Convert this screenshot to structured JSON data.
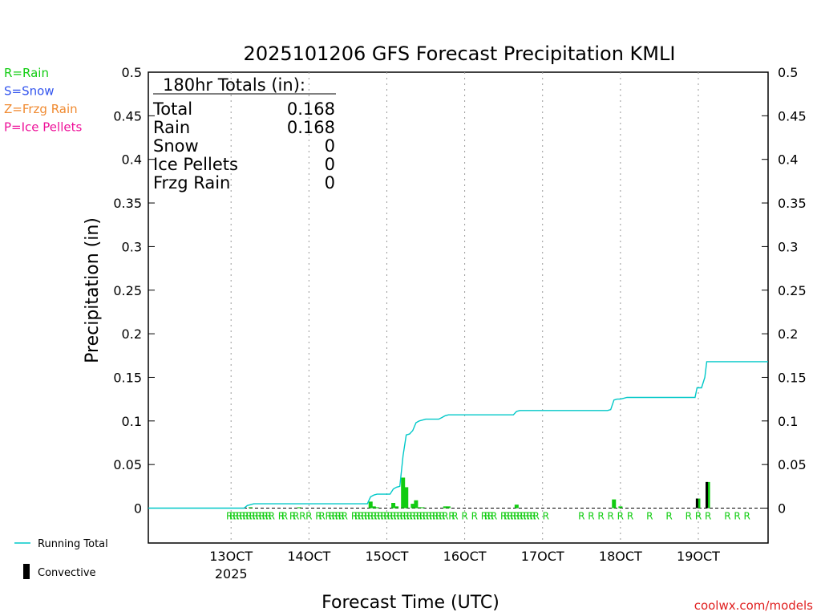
{
  "chart_data": {
    "type": "bar",
    "title": "2025101206 GFS Forecast Precipitation KMLI",
    "xlabel": "Forecast Time (UTC)",
    "ylabel": "Precipitation (in)",
    "ylim": [
      -0.04,
      0.5
    ],
    "xlim_hours": [
      -7.5,
      183.5
    ],
    "y_ticks": [
      0,
      0.05,
      0.1,
      0.15,
      0.2,
      0.25,
      0.3,
      0.35,
      0.4,
      0.45,
      0.5
    ],
    "y_tick_labels": [
      "0",
      "0.05",
      "0.1",
      "0.15",
      "0.2",
      "0.25",
      "0.3",
      "0.35",
      "0.4",
      "0.45",
      "0.5"
    ],
    "x_ticks": [
      {
        "hour": 18,
        "label": "13OCT",
        "sublabel": "2025"
      },
      {
        "hour": 42,
        "label": "14OCT"
      },
      {
        "hour": 66,
        "label": "15OCT"
      },
      {
        "hour": 90,
        "label": "16OCT"
      },
      {
        "hour": 114,
        "label": "17OCT"
      },
      {
        "hour": 138,
        "label": "18OCT"
      },
      {
        "hour": 162,
        "label": "19OCT"
      }
    ],
    "precip_type_legend": [
      {
        "label": "R=Rain",
        "color": "#11cc11"
      },
      {
        "label": "S=Snow",
        "color": "#3355ee"
      },
      {
        "label": "Z=Frzg Rain",
        "color": "#f08a30"
      },
      {
        "label": "P=Ice Pellets",
        "color": "#ee1199"
      }
    ],
    "series_legend": {
      "running_total": "Running Total",
      "convective": "Convective"
    },
    "totals_box": {
      "heading": "180hr Totals (in):",
      "rows": [
        {
          "label": "Total",
          "value": "0.168"
        },
        {
          "label": "Rain",
          "value": "0.168"
        },
        {
          "label": "Snow",
          "value": "0"
        },
        {
          "label": "Ice Pellets",
          "value": "0"
        },
        {
          "label": "Frzg Rain",
          "value": "0"
        }
      ]
    },
    "rain_bars": [
      {
        "hour": 24,
        "value": 0.001
      },
      {
        "hour": 39,
        "value": 0.001
      },
      {
        "hour": 61,
        "value": 0.0075
      },
      {
        "hour": 62,
        "value": 0.002
      },
      {
        "hour": 63,
        "value": 0.001
      },
      {
        "hour": 68,
        "value": 0.006
      },
      {
        "hour": 69,
        "value": 0.002
      },
      {
        "hour": 71,
        "value": 0.035
      },
      {
        "hour": 72,
        "value": 0.024
      },
      {
        "hour": 74,
        "value": 0.005
      },
      {
        "hour": 75,
        "value": 0.009
      },
      {
        "hour": 76,
        "value": 0.001
      },
      {
        "hour": 77,
        "value": 0.001
      },
      {
        "hour": 84,
        "value": 0.002
      },
      {
        "hour": 85,
        "value": 0.002
      },
      {
        "hour": 106,
        "value": 0.004
      },
      {
        "hour": 136,
        "value": 0.01
      },
      {
        "hour": 138,
        "value": 0.002
      },
      {
        "hour": 162,
        "value": 0.011
      },
      {
        "hour": 165,
        "value": 0.03
      }
    ],
    "convective_bars": [
      {
        "hour": 161.6,
        "value": 0.011
      },
      {
        "hour": 164.6,
        "value": 0.03
      }
    ],
    "running_total": [
      [
        -7.5,
        0
      ],
      [
        22,
        0
      ],
      [
        23,
        0.003
      ],
      [
        24,
        0.004
      ],
      [
        25,
        0.005
      ],
      [
        60,
        0.005
      ],
      [
        61,
        0.013
      ],
      [
        62,
        0.015
      ],
      [
        63,
        0.016
      ],
      [
        67,
        0.016
      ],
      [
        68,
        0.022
      ],
      [
        69,
        0.024
      ],
      [
        70,
        0.025
      ],
      [
        71,
        0.06
      ],
      [
        72,
        0.084
      ],
      [
        73,
        0.085
      ],
      [
        74,
        0.089
      ],
      [
        75,
        0.098
      ],
      [
        76,
        0.1
      ],
      [
        77,
        0.101
      ],
      [
        78,
        0.102
      ],
      [
        82,
        0.102
      ],
      [
        83,
        0.104
      ],
      [
        84,
        0.106
      ],
      [
        85,
        0.107
      ],
      [
        105,
        0.107
      ],
      [
        106,
        0.111
      ],
      [
        107,
        0.112
      ],
      [
        134,
        0.112
      ],
      [
        135,
        0.113
      ],
      [
        136,
        0.124
      ],
      [
        137,
        0.125
      ],
      [
        138,
        0.125
      ],
      [
        139,
        0.126
      ],
      [
        140,
        0.127
      ],
      [
        161,
        0.127
      ],
      [
        161.6,
        0.138
      ],
      [
        163,
        0.138
      ],
      [
        164,
        0.15
      ],
      [
        164.6,
        0.168
      ],
      [
        183.5,
        0.168
      ]
    ],
    "precip_type_marks": {
      "symbol": "R",
      "hours": [
        17.5,
        18.5,
        19.5,
        20.5,
        21.5,
        22.5,
        23.5,
        24.5,
        25.5,
        26.5,
        27.5,
        28.5,
        29.5,
        30.5,
        33.5,
        34.5,
        37,
        38,
        40,
        42,
        45,
        46,
        48,
        49,
        50,
        51,
        52,
        53,
        56,
        57,
        58,
        59,
        60,
        61,
        62,
        63,
        64,
        65,
        66,
        67,
        68,
        69,
        70,
        71,
        72,
        73,
        74,
        75,
        76,
        77,
        78,
        79,
        80,
        81,
        82,
        83,
        84,
        86,
        87,
        90,
        93,
        96,
        97,
        98,
        99,
        102,
        103,
        104,
        105,
        106,
        107,
        108,
        109,
        110,
        111,
        112,
        115,
        126,
        129,
        132,
        135,
        138,
        141,
        147,
        153,
        159,
        162,
        165,
        171,
        174,
        177
      ]
    }
  },
  "footer": {
    "credit": "coolwx.com/models"
  }
}
